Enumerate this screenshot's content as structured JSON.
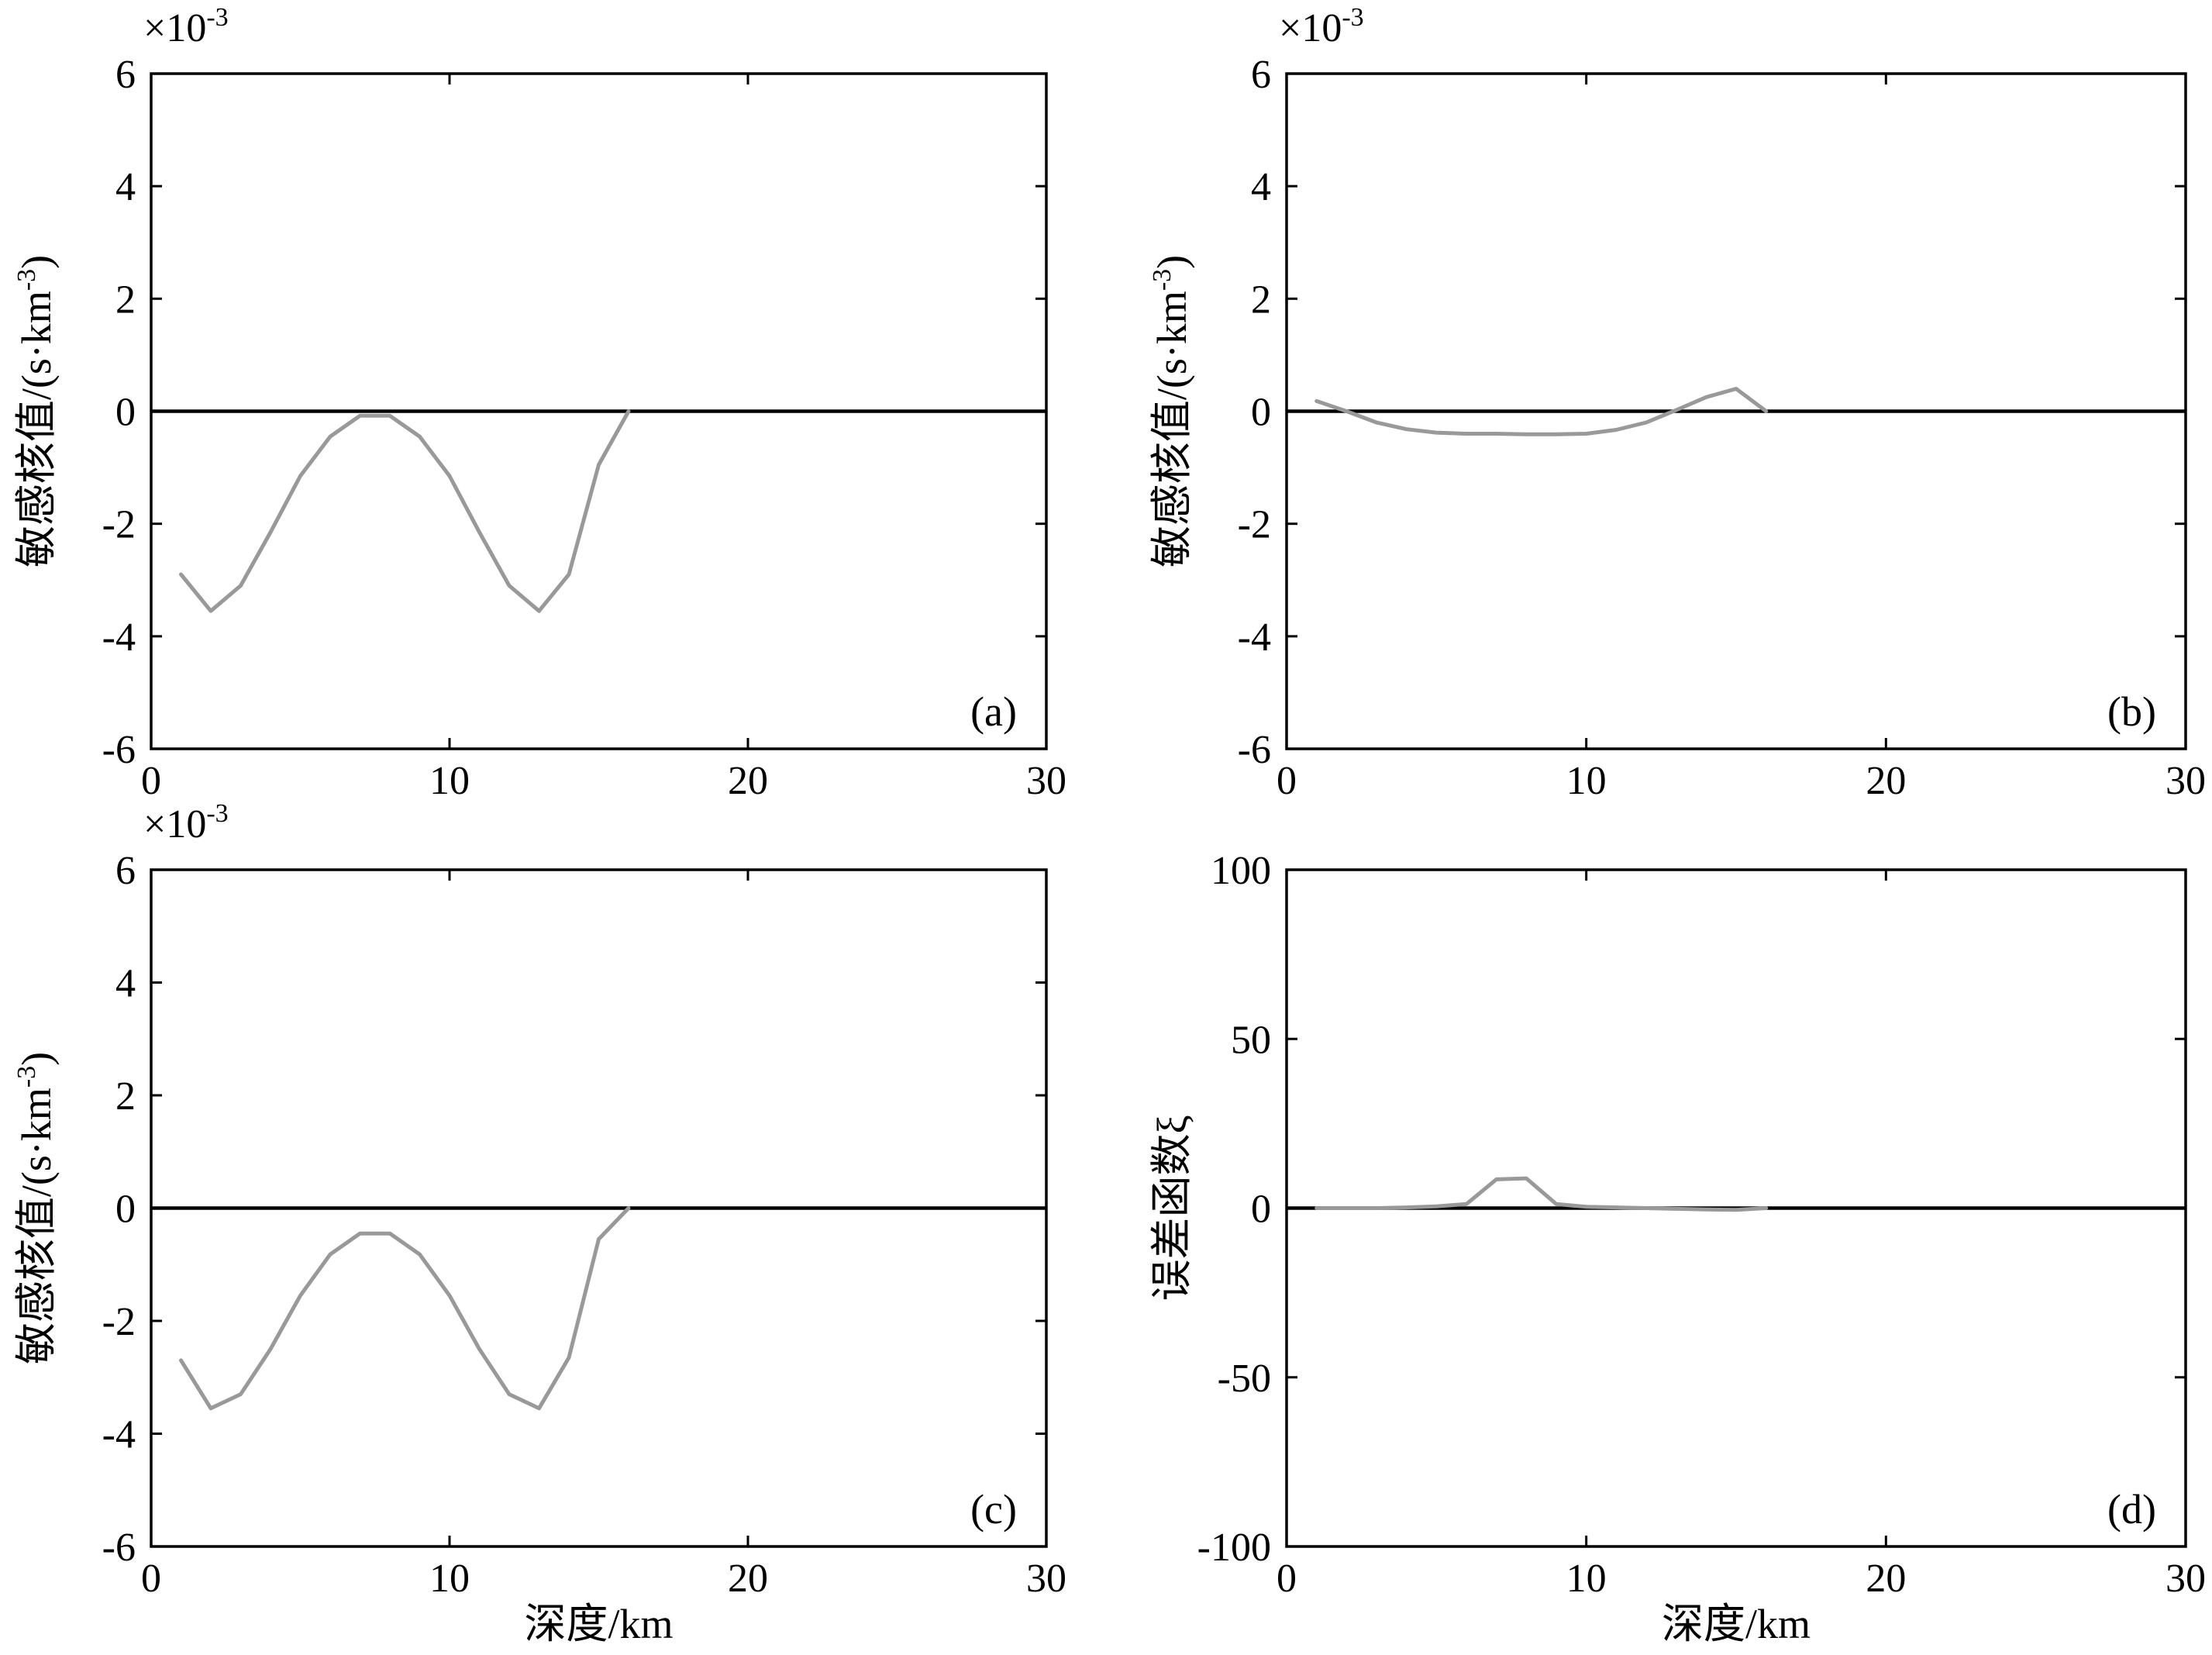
{
  "colors": {
    "series": "#999999",
    "zero_line": "#000000",
    "frame": "#000000"
  },
  "chart_data": [
    {
      "type": "line",
      "panel_label": "(a)",
      "multiplier": {
        "base": "×10",
        "exponent": "-3"
      },
      "ylabel": "敏感核值/(s·km",
      "ylabel_exponent": "-3",
      "ylabel_close": ")",
      "xlabel": "",
      "xlim": [
        0,
        30
      ],
      "ylim": [
        -6,
        6
      ],
      "xticks": [
        0,
        10,
        20,
        30
      ],
      "yticks": [
        -6,
        -4,
        -2,
        0,
        2,
        4,
        6
      ],
      "series": [
        {
          "x": [
            1,
            2,
            3,
            4,
            5,
            6,
            7,
            8,
            9,
            10,
            11,
            12,
            13,
            14,
            15,
            16
          ],
          "y": [
            -2.9,
            -3.55,
            -3.1,
            -2.15,
            -1.15,
            -0.45,
            -0.08,
            -0.08,
            -0.45,
            -1.15,
            -2.15,
            -3.1,
            -3.55,
            -2.9,
            -0.95,
            0.0
          ]
        }
      ]
    },
    {
      "type": "line",
      "panel_label": "(b)",
      "multiplier": {
        "base": "×10",
        "exponent": "-3"
      },
      "ylabel": "敏感核值/(s·km",
      "ylabel_exponent": "-3",
      "ylabel_close": ")",
      "xlabel": "",
      "xlim": [
        0,
        30
      ],
      "ylim": [
        -6,
        6
      ],
      "xticks": [
        0,
        10,
        20,
        30
      ],
      "yticks": [
        -6,
        -4,
        -2,
        0,
        2,
        4,
        6
      ],
      "series": [
        {
          "x": [
            1,
            2,
            3,
            4,
            5,
            6,
            7,
            8,
            9,
            10,
            11,
            12,
            13,
            14,
            15,
            16
          ],
          "y": [
            0.18,
            0.0,
            -0.2,
            -0.32,
            -0.38,
            -0.4,
            -0.4,
            -0.41,
            -0.41,
            -0.4,
            -0.33,
            -0.2,
            0.02,
            0.25,
            0.4,
            0.0
          ]
        }
      ]
    },
    {
      "type": "line",
      "panel_label": "(c)",
      "multiplier": {
        "base": "×10",
        "exponent": "-3"
      },
      "ylabel": "敏感核值/(s·km",
      "ylabel_exponent": "-3",
      "ylabel_close": ")",
      "xlabel": "深度/km",
      "xlim": [
        0,
        30
      ],
      "ylim": [
        -6,
        6
      ],
      "xticks": [
        0,
        10,
        20,
        30
      ],
      "yticks": [
        -6,
        -4,
        -2,
        0,
        2,
        4,
        6
      ],
      "series": [
        {
          "x": [
            1,
            2,
            3,
            4,
            5,
            6,
            7,
            8,
            9,
            10,
            11,
            12,
            13,
            14,
            15,
            16
          ],
          "y": [
            -2.7,
            -3.55,
            -3.3,
            -2.5,
            -1.55,
            -0.82,
            -0.45,
            -0.45,
            -0.82,
            -1.55,
            -2.5,
            -3.3,
            -3.55,
            -2.65,
            -0.55,
            0.0
          ]
        }
      ]
    },
    {
      "type": "line",
      "panel_label": "(d)",
      "multiplier": null,
      "ylabel": "误差函数ξ",
      "ylabel_exponent": "",
      "ylabel_close": "",
      "xlabel": "深度/km",
      "xlim": [
        0,
        30
      ],
      "ylim": [
        -100,
        100
      ],
      "xticks": [
        0,
        10,
        20,
        30
      ],
      "yticks": [
        -100,
        -50,
        0,
        50,
        100
      ],
      "series": [
        {
          "x": [
            1,
            2,
            3,
            4,
            5,
            6,
            7,
            8,
            9,
            10,
            11,
            12,
            13,
            14,
            15,
            16
          ],
          "y": [
            0,
            0,
            0,
            0.2,
            0.5,
            1.2,
            8.5,
            8.8,
            1.2,
            0.4,
            0.2,
            0,
            -0.2,
            -0.4,
            -0.5,
            0
          ]
        }
      ]
    }
  ]
}
